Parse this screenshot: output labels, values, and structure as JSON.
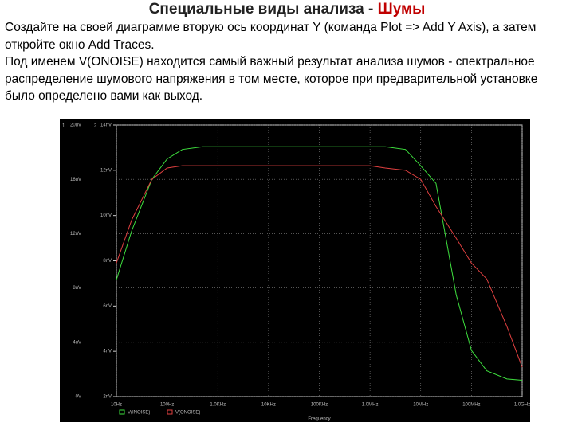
{
  "header": {
    "title": "Специальные виды анализа - ",
    "title_accent": "Шумы"
  },
  "body": {
    "paragraphs": [
      "Создайте на своей диаграмме вторую ось координат Y (команда Plot => Add Y Axis), а затем откройте окно Add Traces.",
      "Под именем V(ONOISE) находится самый важный результат анализа шумов - спектральное распределение шумового напряжения в том месте, которое при предварительной установке было определено вами как выход."
    ]
  },
  "chart_data": {
    "type": "line",
    "xlabel": "Frequency",
    "xscale": "log",
    "grid": true,
    "y_axis_name": "1",
    "y2_axis_name": "2",
    "x": [
      10,
      20,
      50,
      100,
      200,
      500,
      1000,
      10000,
      100000,
      1000000,
      2000000,
      5000000,
      10000000,
      20000000,
      50000000,
      100000000,
      200000000,
      500000000,
      1000000000
    ],
    "xlim": [
      10,
      1000000000
    ],
    "xticks": [
      {
        "value": 10,
        "label": "10Hz"
      },
      {
        "value": 100,
        "label": "100Hz"
      },
      {
        "value": 1000,
        "label": "1.0KHz"
      },
      {
        "value": 10000,
        "label": "10KHz"
      },
      {
        "value": 100000,
        "label": "100KHz"
      },
      {
        "value": 1000000,
        "label": "1.0MHz"
      },
      {
        "value": 10000000,
        "label": "10MHz"
      },
      {
        "value": 100000000,
        "label": "100MHz"
      },
      {
        "value": 1000000000,
        "label": "1.0GHz"
      }
    ],
    "ylim": [
      0,
      20
    ],
    "yticks": [
      {
        "value": 0,
        "label": "0V"
      },
      {
        "value": 4,
        "label": "4uV"
      },
      {
        "value": 8,
        "label": "8uV"
      },
      {
        "value": 12,
        "label": "12uV"
      },
      {
        "value": 16,
        "label": "16uV"
      },
      {
        "value": 20,
        "label": "20uV"
      }
    ],
    "y2lim": [
      2,
      14
    ],
    "y2ticks": [
      {
        "value": 2,
        "label": "2nV"
      },
      {
        "value": 4,
        "label": "4nV"
      },
      {
        "value": 6,
        "label": "6nV"
      },
      {
        "value": 8,
        "label": "8nV"
      },
      {
        "value": 10,
        "label": "10nV"
      },
      {
        "value": 12,
        "label": "12nV"
      },
      {
        "value": 14,
        "label": "14nV"
      }
    ],
    "series": [
      {
        "name": "V(INOISE)",
        "color": "#3ee03e",
        "values": [
          8.6,
          12.2,
          16.0,
          17.5,
          18.2,
          18.4,
          18.4,
          18.4,
          18.4,
          18.4,
          18.4,
          18.2,
          17.0,
          15.7,
          7.5,
          3.4,
          1.9,
          1.3,
          1.2
        ]
      },
      {
        "name": "V(ONOISE)",
        "color": "#e04040",
        "axis": "y2",
        "values": [
          7.9,
          9.8,
          11.6,
          12.1,
          12.2,
          12.2,
          12.2,
          12.2,
          12.2,
          12.2,
          12.1,
          12.0,
          11.6,
          10.4,
          9.0,
          7.9,
          7.2,
          5.1,
          3.3
        ]
      }
    ]
  }
}
